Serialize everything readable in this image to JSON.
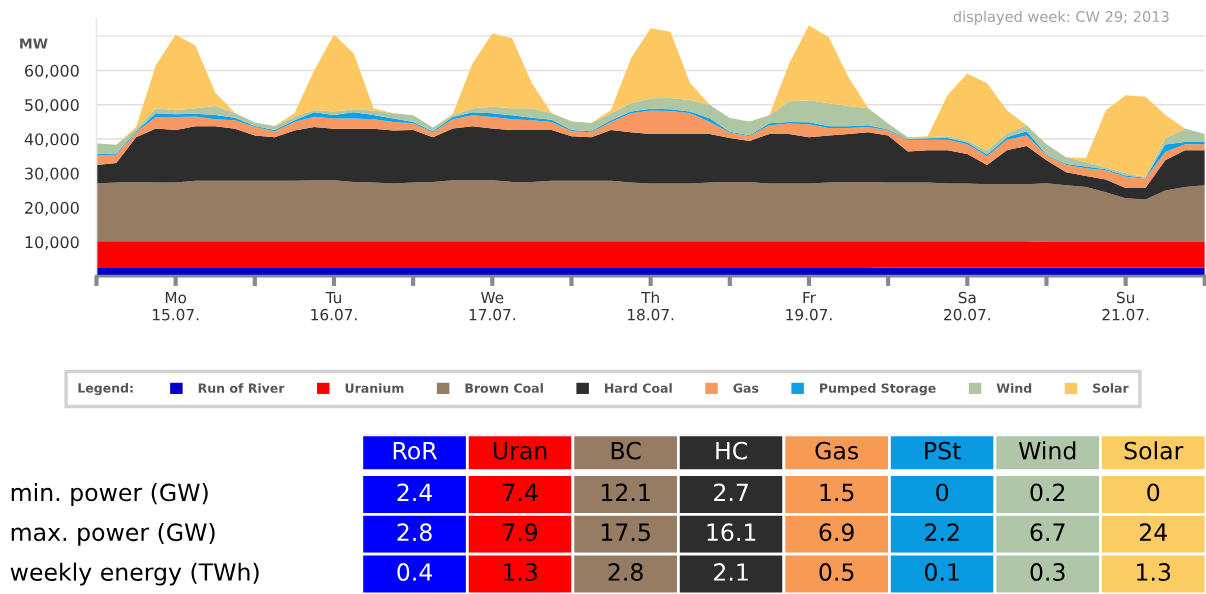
{
  "chart_data": [
    {
      "type": "area",
      "stacked": true,
      "subtitle": "displayed week: CW 29; 2013",
      "ylabel": "MW",
      "legend_title": "Legend:",
      "legend": "bottom",
      "grid": "y",
      "x": [
        "2013-07-15T00:00",
        "2013-07-15T03:00",
        "2013-07-15T06:00",
        "2013-07-15T09:00",
        "2013-07-15T12:00",
        "2013-07-15T15:00",
        "2013-07-15T18:00",
        "2013-07-15T21:00",
        "2013-07-16T00:00",
        "2013-07-16T03:00",
        "2013-07-16T06:00",
        "2013-07-16T09:00",
        "2013-07-16T12:00",
        "2013-07-16T15:00",
        "2013-07-16T18:00",
        "2013-07-16T21:00",
        "2013-07-17T00:00",
        "2013-07-17T03:00",
        "2013-07-17T06:00",
        "2013-07-17T09:00",
        "2013-07-17T12:00",
        "2013-07-17T15:00",
        "2013-07-17T18:00",
        "2013-07-17T21:00",
        "2013-07-18T00:00",
        "2013-07-18T03:00",
        "2013-07-18T06:00",
        "2013-07-18T09:00",
        "2013-07-18T12:00",
        "2013-07-18T15:00",
        "2013-07-18T18:00",
        "2013-07-18T21:00",
        "2013-07-19T00:00",
        "2013-07-19T03:00",
        "2013-07-19T06:00",
        "2013-07-19T09:00",
        "2013-07-19T12:00",
        "2013-07-19T15:00",
        "2013-07-19T18:00",
        "2013-07-19T21:00",
        "2013-07-20T00:00",
        "2013-07-20T03:00",
        "2013-07-20T06:00",
        "2013-07-20T09:00",
        "2013-07-20T12:00",
        "2013-07-20T15:00",
        "2013-07-20T18:00",
        "2013-07-20T21:00",
        "2013-07-21T00:00",
        "2013-07-21T03:00",
        "2013-07-21T06:00",
        "2013-07-21T09:00",
        "2013-07-21T12:00",
        "2013-07-21T15:00",
        "2013-07-21T18:00",
        "2013-07-21T21:00",
        "2013-07-22T00:00"
      ],
      "xlim": [
        "2013-07-15T00:00",
        "2013-07-22T00:00"
      ],
      "xticks": [
        {
          "value": "2013-07-15T00:00",
          "label": null
        },
        {
          "value": "2013-07-15T12:00",
          "label": "Mo\n15.07."
        },
        {
          "value": "2013-07-16T00:00",
          "label": null
        },
        {
          "value": "2013-07-16T12:00",
          "label": "Tu\n16.07."
        },
        {
          "value": "2013-07-17T00:00",
          "label": null
        },
        {
          "value": "2013-07-17T12:00",
          "label": "We\n17.07."
        },
        {
          "value": "2013-07-18T00:00",
          "label": null
        },
        {
          "value": "2013-07-18T12:00",
          "label": "Th\n18.07."
        },
        {
          "value": "2013-07-19T00:00",
          "label": null
        },
        {
          "value": "2013-07-19T12:00",
          "label": "Fr\n19.07."
        },
        {
          "value": "2013-07-20T00:00",
          "label": null
        },
        {
          "value": "2013-07-20T12:00",
          "label": "Sa\n20.07."
        },
        {
          "value": "2013-07-21T00:00",
          "label": null
        },
        {
          "value": "2013-07-21T12:00",
          "label": "Su\n21.07."
        },
        {
          "value": "2013-07-22T00:00",
          "label": null
        }
      ],
      "ylim": [
        0,
        75000
      ],
      "yticks": [
        {
          "value": 10000,
          "label": "10,000"
        },
        {
          "value": 20000,
          "label": "20,000"
        },
        {
          "value": 30000,
          "label": "30,000"
        },
        {
          "value": 40000,
          "label": "40,000"
        },
        {
          "value": 50000,
          "label": "50,000"
        },
        {
          "value": 60000,
          "label": "60,000"
        },
        {
          "value": 70000,
          "label": null
        }
      ],
      "series": [
        {
          "name": "Run of River",
          "color": "#0000c8",
          "values": [
            2600,
            2600,
            2600,
            2600,
            2600,
            2600,
            2600,
            2600,
            2600,
            2600,
            2600,
            2600,
            2600,
            2600,
            2600,
            2600,
            2600,
            2600,
            2600,
            2600,
            2600,
            2600,
            2600,
            2600,
            2600,
            2600,
            2600,
            2600,
            2600,
            2600,
            2600,
            2600,
            2600,
            2600,
            2600,
            2600,
            2600,
            2600,
            2600,
            2600,
            2500,
            2500,
            2500,
            2500,
            2500,
            2500,
            2500,
            2500,
            2500,
            2500,
            2500,
            2500,
            2500,
            2500,
            2500,
            2500,
            2500
          ]
        },
        {
          "name": "Uranium",
          "color": "#ff0000",
          "values": [
            7600,
            7600,
            7600,
            7600,
            7600,
            7600,
            7600,
            7600,
            7600,
            7600,
            7600,
            7600,
            7600,
            7600,
            7600,
            7600,
            7600,
            7600,
            7600,
            7600,
            7600,
            7600,
            7600,
            7600,
            7600,
            7600,
            7600,
            7600,
            7600,
            7600,
            7600,
            7600,
            7600,
            7600,
            7600,
            7600,
            7600,
            7600,
            7600,
            7600,
            7700,
            7700,
            7700,
            7700,
            7700,
            7700,
            7700,
            7700,
            7500,
            7500,
            7500,
            7500,
            7500,
            7500,
            7500,
            7500,
            7500
          ]
        },
        {
          "name": "Brown Coal",
          "color": "#957c62",
          "values": [
            16800,
            17100,
            17300,
            17100,
            17100,
            17600,
            17600,
            17600,
            17600,
            17600,
            17600,
            17800,
            17800,
            17300,
            17100,
            16800,
            17100,
            17300,
            17800,
            17800,
            17800,
            17300,
            17300,
            17600,
            17600,
            17600,
            17600,
            17100,
            16800,
            16800,
            16800,
            17100,
            17300,
            17300,
            16800,
            16800,
            16800,
            17100,
            17300,
            17300,
            17100,
            17100,
            17100,
            16800,
            16800,
            16600,
            16600,
            16600,
            17100,
            16500,
            16000,
            14500,
            12700,
            12400,
            15000,
            16000,
            16500
          ]
        },
        {
          "name": "Hard Coal",
          "color": "#2d2d2d",
          "values": [
            5400,
            5700,
            13000,
            15800,
            15300,
            15900,
            15900,
            15200,
            13200,
            12700,
            14700,
            15500,
            15000,
            15500,
            15700,
            15500,
            15300,
            13000,
            15100,
            15700,
            15100,
            15100,
            15100,
            14800,
            13000,
            12700,
            14800,
            14700,
            14500,
            14500,
            14500,
            14200,
            12800,
            11900,
            14500,
            14500,
            13500,
            13700,
            14000,
            14500,
            13700,
            9100,
            9400,
            9700,
            8600,
            5600,
            9900,
            11200,
            6700,
            3800,
            3200,
            3700,
            3000,
            3300,
            8800,
            10700,
            10200
          ]
        },
        {
          "name": "Gas",
          "color": "#f79862",
          "values": [
            2900,
            2400,
            1500,
            3300,
            3800,
            2900,
            2100,
            2500,
            2500,
            1800,
            2500,
            3000,
            3000,
            3000,
            2800,
            2500,
            2000,
            1500,
            2700,
            3200,
            3300,
            3200,
            2900,
            2400,
            1500,
            1500,
            2400,
            5500,
            6800,
            6700,
            6000,
            3500,
            1500,
            1500,
            2500,
            3000,
            3800,
            2200,
            1700,
            1500,
            1500,
            3400,
            3100,
            3100,
            2900,
            2600,
            3100,
            3000,
            1500,
            2100,
            2300,
            2700,
            3300,
            2800,
            2400,
            1800,
            1800
          ]
        },
        {
          "name": "Pumped Storage",
          "color": "#0ea0e6",
          "values": [
            400,
            400,
            300,
            1100,
            800,
            800,
            1200,
            700,
            300,
            300,
            500,
            1300,
            1000,
            1800,
            1200,
            1000,
            400,
            300,
            600,
            900,
            1100,
            1100,
            700,
            600,
            300,
            300,
            500,
            500,
            500,
            500,
            500,
            1000,
            300,
            200,
            600,
            500,
            600,
            500,
            500,
            500,
            300,
            200,
            400,
            500,
            500,
            500,
            700,
            1300,
            200,
            300,
            500,
            300,
            400,
            200,
            2200,
            600,
            600
          ]
        },
        {
          "name": "Wind",
          "color": "#afc6a3",
          "values": [
            3100,
            2500,
            700,
            1500,
            1200,
            1600,
            2600,
            1400,
            1000,
            1200,
            1000,
            700,
            1000,
            900,
            1300,
            1500,
            1900,
            1100,
            500,
            1200,
            1900,
            2100,
            2800,
            1900,
            2600,
            2400,
            2000,
            2400,
            3100,
            3300,
            3400,
            3900,
            4000,
            4000,
            2300,
            6000,
            6400,
            6700,
            5900,
            5000,
            1700,
            500,
            300,
            500,
            500,
            1200,
            1200,
            1700,
            3000,
            2000,
            1300,
            600,
            600,
            200,
            1800,
            4000,
            2400
          ]
        },
        {
          "name": "Solar",
          "color": "#fdc862",
          "values": [
            0,
            0,
            500,
            12500,
            22100,
            18300,
            4000,
            0,
            0,
            0,
            1000,
            11500,
            22500,
            16300,
            700,
            0,
            0,
            0,
            400,
            13000,
            21400,
            20400,
            7300,
            0,
            0,
            0,
            1000,
            13100,
            20400,
            19300,
            4900,
            0,
            0,
            0,
            0,
            11000,
            21900,
            19300,
            8400,
            0,
            0,
            0,
            300,
            12000,
            19600,
            19600,
            6700,
            0,
            0,
            0,
            1100,
            16600,
            22800,
            23400,
            6900,
            0,
            0
          ]
        }
      ]
    },
    {
      "type": "heatmap",
      "categories": [
        "RoR",
        "Uran",
        "BC",
        "HC",
        "Gas",
        "PSt",
        "Wind",
        "Solar"
      ],
      "colors": [
        "#0000ff",
        "#ff0000",
        "#957c62",
        "#2d2d2d",
        "#f79a55",
        "#0a9ae2",
        "#b0c6a8",
        "#fccc64"
      ],
      "y_categories": [
        "min. power (GW)",
        "max. power (GW)",
        "weekly energy (TWh)"
      ],
      "cells": [
        [
          2.4,
          7.4,
          12.1,
          2.7,
          1.5,
          0,
          0.2,
          0
        ],
        [
          2.8,
          7.9,
          17.5,
          16.1,
          6.9,
          2.2,
          6.7,
          24
        ],
        [
          0.4,
          1.3,
          2.8,
          2.1,
          0.5,
          0.1,
          0.3,
          1.3
        ]
      ],
      "data_labels": true
    }
  ]
}
